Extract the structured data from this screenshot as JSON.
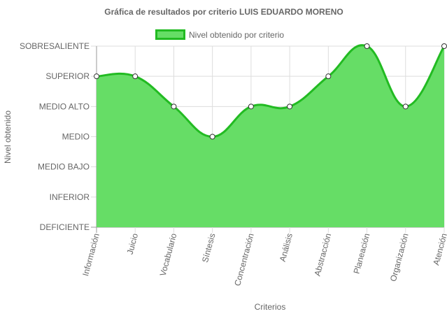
{
  "chart_data": {
    "type": "area",
    "title": "Gráfica de resultados por criterio LUIS EDUARDO MORENO",
    "xlabel": "Criterios",
    "ylabel": "Nivel obtenido",
    "levels": [
      "DEFICIENTE",
      "INFERIOR",
      "MEDIO BAJO",
      "MEDIO",
      "MEDIO ALTO",
      "SUPERIOR",
      "SOBRESALIENTE"
    ],
    "categories": [
      "Información",
      "Juicio",
      "Vocabulario",
      "Síntesis",
      "Concentración",
      "Análisis",
      "Abstracción",
      "Planeación",
      "Organización",
      "Atención"
    ],
    "series": [
      {
        "name": "Nivel obtenido por criterio",
        "values": [
          "SUPERIOR",
          "SUPERIOR",
          "MEDIO ALTO",
          "MEDIO",
          "MEDIO ALTO",
          "MEDIO ALTO",
          "SUPERIOR",
          "SOBRESALIENTE",
          "MEDIO ALTO",
          "SOBRESALIENTE"
        ],
        "fill_color": "#66dd66",
        "line_color": "#22bb22"
      }
    ],
    "legend_position": "top",
    "grid": true
  }
}
